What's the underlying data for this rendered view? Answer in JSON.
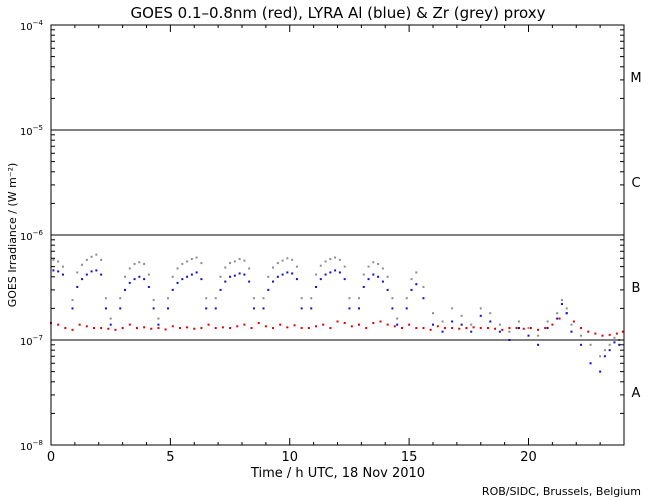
{
  "chart_data": {
    "type": "scatter",
    "title": "GOES 0.1–0.8nm (red), LYRA Al (blue) & Zr (grey) proxy",
    "xlabel": "Time / h UTC, 18 Nov 2010",
    "ylabel": "GOES Irradiance / (W m⁻²)",
    "xlim": [
      0,
      24
    ],
    "ylim": [
      1e-08,
      0.0001
    ],
    "y_scale": "log",
    "x_ticks": [
      0,
      5,
      10,
      15,
      20
    ],
    "x_tick_labels": [
      "0",
      "5",
      "10",
      "15",
      "20"
    ],
    "y_ticks": [
      {
        "value": 1e-08,
        "base": "10",
        "exp": "−8"
      },
      {
        "value": 1e-07,
        "base": "10",
        "exp": "−7"
      },
      {
        "value": 1e-06,
        "base": "10",
        "exp": "−6"
      },
      {
        "value": 1e-05,
        "base": "10",
        "exp": "−5"
      },
      {
        "value": 0.0001,
        "base": "10",
        "exp": "−4"
      }
    ],
    "class_lines": [
      1e-07,
      1e-06,
      1e-05
    ],
    "class_labels": [
      {
        "label": "A",
        "value": 3.2e-08
      },
      {
        "label": "B",
        "value": 3.2e-07
      },
      {
        "label": "C",
        "value": 3.2e-06
      },
      {
        "label": "M",
        "value": 3.2e-05
      }
    ],
    "series": [
      {
        "name": "GOES 0.1–0.8nm",
        "color": "#e00000",
        "x": [
          0.0,
          0.3,
          0.6,
          0.9,
          1.2,
          1.5,
          1.8,
          2.1,
          2.4,
          2.7,
          3.0,
          3.3,
          3.6,
          3.9,
          4.2,
          4.5,
          4.8,
          5.1,
          5.4,
          5.7,
          6.0,
          6.3,
          6.6,
          6.9,
          7.2,
          7.5,
          7.8,
          8.1,
          8.4,
          8.7,
          9.0,
          9.3,
          9.6,
          9.9,
          10.2,
          10.5,
          10.8,
          11.1,
          11.4,
          11.7,
          12.0,
          12.3,
          12.6,
          12.9,
          13.2,
          13.5,
          13.8,
          14.1,
          14.4,
          14.7,
          15.0,
          15.3,
          15.6,
          15.9,
          16.2,
          16.5,
          16.8,
          17.1,
          17.4,
          17.7,
          18.0,
          18.3,
          18.6,
          18.9,
          19.2,
          19.5,
          19.8,
          20.1,
          20.4,
          20.7,
          21.0,
          21.3,
          21.6,
          21.9,
          22.2,
          22.5,
          22.8,
          23.1,
          23.4,
          23.7,
          23.95
        ],
        "y": [
          1.45e-07,
          1.4e-07,
          1.3e-07,
          1.25e-07,
          1.4e-07,
          1.35e-07,
          1.3e-07,
          1.3e-07,
          1.28e-07,
          1.25e-07,
          1.3e-07,
          1.4e-07,
          1.3e-07,
          1.32e-07,
          1.28e-07,
          1.3e-07,
          1.26e-07,
          1.35e-07,
          1.3e-07,
          1.32e-07,
          1.28e-07,
          1.3e-07,
          1.4e-07,
          1.3e-07,
          1.32e-07,
          1.3e-07,
          1.35e-07,
          1.4e-07,
          1.3e-07,
          1.45e-07,
          1.35e-07,
          1.3e-07,
          1.4e-07,
          1.32e-07,
          1.38e-07,
          1.3e-07,
          1.3e-07,
          1.35e-07,
          1.4e-07,
          1.3e-07,
          1.5e-07,
          1.45e-07,
          1.35e-07,
          1.4e-07,
          1.3e-07,
          1.45e-07,
          1.5e-07,
          1.4e-07,
          1.35e-07,
          1.3e-07,
          1.4e-07,
          1.3e-07,
          1.3e-07,
          1.25e-07,
          1.35e-07,
          1.3e-07,
          1.3e-07,
          1.28e-07,
          1.3e-07,
          1.32e-07,
          1.3e-07,
          1.3e-07,
          1.28e-07,
          1.25e-07,
          1.3e-07,
          1.3e-07,
          1.28e-07,
          1.3e-07,
          1.25e-07,
          1.3e-07,
          1.4e-07,
          1.6e-07,
          1.8e-07,
          1.5e-07,
          1.3e-07,
          1.2e-07,
          1.15e-07,
          1.1e-07,
          1.12e-07,
          1.15e-07,
          1.2e-07
        ]
      },
      {
        "name": "LYRA Al",
        "color": "#1010c8",
        "x": [
          0.1,
          0.3,
          0.5,
          0.9,
          1.1,
          1.3,
          1.5,
          1.7,
          1.9,
          2.1,
          2.3,
          2.5,
          2.9,
          3.1,
          3.3,
          3.5,
          3.7,
          3.9,
          4.1,
          4.3,
          4.5,
          4.9,
          5.1,
          5.3,
          5.5,
          5.7,
          5.9,
          6.1,
          6.3,
          6.5,
          6.9,
          7.1,
          7.3,
          7.5,
          7.7,
          7.9,
          8.1,
          8.3,
          8.5,
          8.9,
          9.1,
          9.3,
          9.5,
          9.7,
          9.9,
          10.1,
          10.3,
          10.5,
          10.9,
          11.1,
          11.3,
          11.5,
          11.7,
          11.9,
          12.1,
          12.3,
          12.5,
          12.9,
          13.1,
          13.3,
          13.5,
          13.7,
          13.9,
          14.1,
          14.3,
          14.5,
          14.9,
          15.1,
          15.3,
          15.6,
          16.0,
          16.4,
          16.8,
          17.2,
          17.6,
          18.0,
          18.4,
          18.8,
          19.2,
          19.6,
          20.0,
          20.4,
          20.8,
          21.2,
          21.4,
          21.6,
          21.8,
          22.2,
          22.6,
          23.0,
          23.2,
          23.4,
          23.6,
          23.8
        ],
        "y": [
          4.6e-07,
          4.5e-07,
          4.2e-07,
          2e-07,
          3.2e-07,
          3.8e-07,
          4.2e-07,
          4.5e-07,
          4.6e-07,
          4.2e-07,
          2e-07,
          1.4e-07,
          2e-07,
          3e-07,
          3.5e-07,
          3.8e-07,
          4e-07,
          3.8e-07,
          3.2e-07,
          2e-07,
          1.4e-07,
          2e-07,
          3e-07,
          3.5e-07,
          3.8e-07,
          4e-07,
          4.2e-07,
          4.4e-07,
          3.8e-07,
          2e-07,
          2e-07,
          3e-07,
          3.6e-07,
          4e-07,
          4.1e-07,
          4.3e-07,
          4.2e-07,
          3.6e-07,
          2e-07,
          2e-07,
          3e-07,
          3.6e-07,
          4e-07,
          4.2e-07,
          4.4e-07,
          4.3e-07,
          3.8e-07,
          2e-07,
          2e-07,
          3.2e-07,
          3.8e-07,
          4.2e-07,
          4.4e-07,
          4.6e-07,
          4.4e-07,
          3.8e-07,
          2e-07,
          2e-07,
          3.2e-07,
          3.8e-07,
          4.2e-07,
          4e-07,
          3.6e-07,
          3e-07,
          2e-07,
          1.4e-07,
          2e-07,
          3e-07,
          3.4e-07,
          2.5e-07,
          1.4e-07,
          1.2e-07,
          1.5e-07,
          1.4e-07,
          1.2e-07,
          1.7e-07,
          1.5e-07,
          1.2e-07,
          1e-07,
          1.3e-07,
          1.1e-07,
          9e-08,
          1.3e-07,
          1.6e-07,
          2.2e-07,
          1.8e-07,
          1.2e-07,
          9e-08,
          6e-08,
          5e-08,
          7e-08,
          8e-08,
          9.5e-08,
          9e-08
        ]
      },
      {
        "name": "Zr",
        "color": "#8c8c8c",
        "x": [
          0.1,
          0.3,
          0.5,
          0.9,
          1.1,
          1.3,
          1.5,
          1.7,
          1.9,
          2.1,
          2.3,
          2.5,
          2.9,
          3.1,
          3.3,
          3.5,
          3.7,
          3.9,
          4.1,
          4.3,
          4.5,
          4.9,
          5.1,
          5.3,
          5.5,
          5.7,
          5.9,
          6.1,
          6.3,
          6.5,
          6.9,
          7.1,
          7.3,
          7.5,
          7.7,
          7.9,
          8.1,
          8.3,
          8.5,
          8.9,
          9.1,
          9.3,
          9.5,
          9.7,
          9.9,
          10.1,
          10.3,
          10.5,
          10.9,
          11.1,
          11.3,
          11.5,
          11.7,
          11.9,
          12.1,
          12.3,
          12.5,
          12.9,
          13.1,
          13.3,
          13.5,
          13.7,
          13.9,
          14.1,
          14.3,
          14.5,
          14.9,
          15.1,
          15.3,
          15.6,
          16.0,
          16.4,
          16.8,
          17.2,
          17.6,
          18.0,
          18.4,
          18.8,
          19.2,
          19.6,
          20.0,
          20.4,
          20.8,
          21.2,
          21.4,
          21.6,
          21.8,
          22.2,
          22.6,
          23.0,
          23.2,
          23.4,
          23.6,
          23.8
        ],
        "y": [
          5.8e-07,
          5.6e-07,
          5e-07,
          2.4e-07,
          4.4e-07,
          5.2e-07,
          5.8e-07,
          6.2e-07,
          6.5e-07,
          5.8e-07,
          2.5e-07,
          1.6e-07,
          2.5e-07,
          4e-07,
          4.8e-07,
          5.3e-07,
          5.5e-07,
          5.3e-07,
          4.2e-07,
          2.4e-07,
          1.6e-07,
          2.5e-07,
          4e-07,
          4.8e-07,
          5.3e-07,
          5.6e-07,
          5.9e-07,
          6.1e-07,
          5.4e-07,
          2.5e-07,
          2.5e-07,
          4e-07,
          4.9e-07,
          5.4e-07,
          5.6e-07,
          5.9e-07,
          5.7e-07,
          4.8e-07,
          2.5e-07,
          2.5e-07,
          4e-07,
          4.9e-07,
          5.4e-07,
          5.7e-07,
          6e-07,
          5.8e-07,
          5e-07,
          2.5e-07,
          2.5e-07,
          4.2e-07,
          5.1e-07,
          5.6e-07,
          5.9e-07,
          6.1e-07,
          5.8e-07,
          5e-07,
          2.5e-07,
          2.5e-07,
          4.2e-07,
          5e-07,
          5.5e-07,
          5.3e-07,
          4.8e-07,
          4e-07,
          2.5e-07,
          1.6e-07,
          2.5e-07,
          3.8e-07,
          4.4e-07,
          3.2e-07,
          1.8e-07,
          1.5e-07,
          2e-07,
          1.7e-07,
          1.4e-07,
          2e-07,
          1.8e-07,
          1.4e-07,
          1.2e-07,
          1.5e-07,
          1.3e-07,
          1.1e-07,
          1.5e-07,
          1.8e-07,
          2.4e-07,
          2e-07,
          1.4e-07,
          1.1e-07,
          9e-08,
          7e-08,
          8e-08,
          9e-08,
          1.05e-07,
          1e-07
        ]
      }
    ],
    "credit": "ROB/SIDC, Brussels, Belgium"
  }
}
